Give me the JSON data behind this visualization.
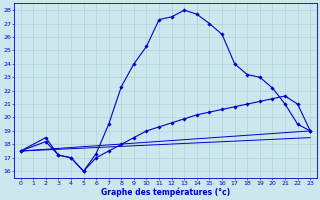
{
  "xlabel": "Graphe des températures (°c)",
  "bg_color": "#cce8ee",
  "grid_color": "#aacccc",
  "line_color": "#0000cc",
  "xlim": [
    -0.5,
    23.5
  ],
  "ylim": [
    15.5,
    28.5
  ],
  "xticks": [
    0,
    1,
    2,
    3,
    4,
    5,
    6,
    7,
    8,
    9,
    10,
    11,
    12,
    13,
    14,
    15,
    16,
    17,
    18,
    19,
    20,
    21,
    22,
    23
  ],
  "yticks": [
    16,
    17,
    18,
    19,
    20,
    21,
    22,
    23,
    24,
    25,
    26,
    27,
    28
  ],
  "line1_x": [
    0,
    2,
    3,
    4,
    5,
    6,
    7,
    8,
    9,
    10,
    11,
    12,
    13,
    14,
    15,
    16,
    17,
    18,
    19,
    20,
    21,
    22,
    23
  ],
  "line1_y": [
    17.5,
    18.5,
    17.2,
    17.0,
    16.0,
    17.3,
    19.5,
    22.3,
    24.0,
    25.3,
    27.3,
    27.5,
    28.0,
    27.7,
    27.0,
    26.2,
    24.0,
    23.2,
    23.0,
    22.2,
    21.0,
    19.5,
    19.0
  ],
  "line2_x": [
    0,
    2,
    3,
    4,
    5,
    6,
    7,
    8,
    9,
    10,
    11,
    12,
    13,
    14,
    15,
    16,
    17,
    18,
    19,
    20,
    21,
    22,
    23
  ],
  "line2_y": [
    17.5,
    18.2,
    17.2,
    17.0,
    16.0,
    17.0,
    17.5,
    18.0,
    18.5,
    19.0,
    19.3,
    19.6,
    19.9,
    20.2,
    20.4,
    20.6,
    20.8,
    21.0,
    21.2,
    21.4,
    21.6,
    21.0,
    19.0
  ],
  "line3_x": [
    0,
    23
  ],
  "line3_y": [
    17.5,
    19.0
  ],
  "line4_x": [
    0,
    23
  ],
  "line4_y": [
    17.5,
    18.5
  ]
}
